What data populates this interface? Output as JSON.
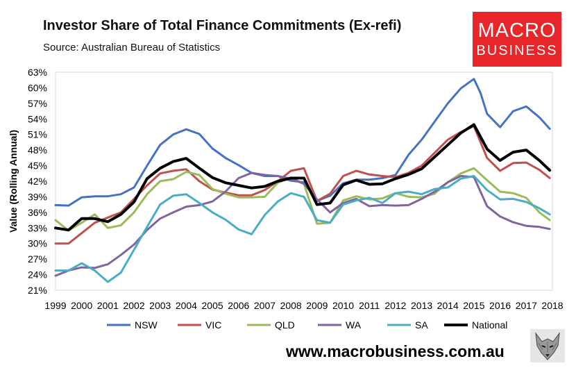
{
  "header": {
    "title": "Investor Share of Total Finance Commitments (Ex-refi)",
    "subtitle": "Source: Australian Bureau of Statistics"
  },
  "logo": {
    "line1": "MACRO",
    "line2": "BUSINESS"
  },
  "footer": {
    "website": "www.macrobusiness.com.au",
    "mascot_icon": "wolf-icon"
  },
  "chart_data": {
    "type": "line",
    "title": "Investor Share of Total Finance Commitments (Ex-refi)",
    "subtitle": "Source: Australian Bureau of Statistics",
    "ylabel": "Value (Rolling Annual)",
    "xlabel": "",
    "ylim": [
      21,
      63
    ],
    "xlim": [
      1999,
      2018
    ],
    "yticks": [
      "21%",
      "24%",
      "27%",
      "30%",
      "33%",
      "36%",
      "39%",
      "42%",
      "45%",
      "48%",
      "51%",
      "54%",
      "57%",
      "60%",
      "63%"
    ],
    "xticks": [
      "1999",
      "2000",
      "2001",
      "2002",
      "2003",
      "2004",
      "2005",
      "2006",
      "2007",
      "2008",
      "2009",
      "2010",
      "2011",
      "2012",
      "2013",
      "2014",
      "2015",
      "2016",
      "2017",
      "2018"
    ],
    "grid": false,
    "legend": "bottom",
    "series": [
      {
        "name": "NSW",
        "color": "#4472c4",
        "width": 3,
        "x": [
          1999,
          1999.5,
          2000,
          2000.5,
          2001,
          2001.5,
          2002,
          2002.5,
          2003,
          2003.5,
          2004,
          2004.5,
          2005,
          2005.5,
          2006,
          2006.5,
          2007,
          2007.5,
          2008,
          2008.5,
          2009,
          2009.5,
          2010,
          2010.5,
          2011,
          2011.5,
          2012,
          2012.5,
          2013,
          2013.5,
          2014,
          2014.5,
          2015,
          2015.25,
          2015.5,
          2016,
          2016.5,
          2017,
          2017.5,
          2017.9
        ],
        "y": [
          37.4,
          37.3,
          38.9,
          39.1,
          39.1,
          39.5,
          40.8,
          45,
          49,
          51,
          52,
          51.1,
          48.3,
          46.5,
          45.1,
          43.6,
          43,
          43,
          42.1,
          41.8,
          38.2,
          39.2,
          41.6,
          42.3,
          42.3,
          42.6,
          43.2,
          47.1,
          50,
          53.5,
          57,
          59.9,
          61.7,
          59,
          55,
          52.4,
          55.5,
          56.4,
          54.3,
          52.1
        ]
      },
      {
        "name": "VIC",
        "color": "#c0504d",
        "width": 3,
        "x": [
          1999,
          1999.5,
          2000,
          2000.5,
          2001,
          2001.5,
          2002,
          2002.5,
          2003,
          2003.5,
          2004,
          2004.5,
          2005,
          2005.5,
          2006,
          2006.5,
          2007,
          2007.5,
          2008,
          2008.5,
          2009,
          2009.5,
          2010,
          2010.5,
          2011,
          2011.5,
          2012,
          2012.5,
          2013,
          2013.5,
          2014,
          2014.5,
          2015,
          2015.5,
          2016,
          2016.5,
          2017,
          2017.5,
          2017.9
        ],
        "y": [
          30,
          30,
          32,
          34,
          35,
          36,
          38.6,
          41.2,
          43.5,
          44,
          44.3,
          42,
          40.4,
          39.8,
          39.3,
          39.3,
          40.3,
          42,
          44,
          44.5,
          38.2,
          39.6,
          43,
          44,
          43.3,
          43,
          42.8,
          43.6,
          45,
          47.5,
          50,
          51.5,
          52.6,
          46.5,
          44,
          45.5,
          45.6,
          44.2,
          42.6
        ]
      },
      {
        "name": "QLD",
        "color": "#9bbb59",
        "width": 3,
        "x": [
          1999,
          1999.5,
          2000,
          2000.5,
          2001,
          2001.5,
          2002,
          2002.5,
          2003,
          2003.5,
          2004,
          2004.5,
          2005,
          2005.5,
          2006,
          2006.5,
          2007,
          2007.5,
          2008,
          2008.5,
          2009,
          2009.5,
          2010,
          2010.5,
          2011,
          2011.5,
          2012,
          2012.5,
          2013,
          2013.5,
          2014,
          2014.5,
          2015,
          2015.5,
          2016,
          2016.5,
          2017,
          2017.5,
          2017.9
        ],
        "y": [
          34.5,
          32.5,
          34,
          35.6,
          33,
          33.5,
          36,
          39.5,
          42,
          42.4,
          43.8,
          43.2,
          40.5,
          39.6,
          38.9,
          38.9,
          39,
          41.7,
          42.7,
          41.5,
          33.8,
          34,
          38.3,
          39.1,
          38.5,
          38.7,
          39.7,
          39,
          38.9,
          39.6,
          41.8,
          43.5,
          44.5,
          42.2,
          40,
          39.7,
          38.8,
          36,
          34.5
        ]
      },
      {
        "name": "WA",
        "color": "#8064a2",
        "width": 3,
        "x": [
          1999,
          1999.5,
          2000,
          2000.5,
          2001,
          2001.5,
          2002,
          2002.5,
          2003,
          2003.5,
          2004,
          2004.5,
          2005,
          2005.5,
          2006,
          2006.5,
          2007,
          2007.5,
          2008,
          2008.5,
          2009,
          2009.5,
          2010,
          2010.5,
          2011,
          2011.5,
          2012,
          2012.5,
          2013,
          2013.5,
          2014,
          2014.5,
          2015,
          2015.5,
          2016,
          2016.5,
          2017,
          2017.5,
          2017.9
        ],
        "y": [
          23.8,
          24.8,
          25.4,
          25.3,
          26,
          27.8,
          29.8,
          32.6,
          34.8,
          36,
          37.1,
          37.4,
          38.1,
          40,
          42.6,
          43.6,
          43.2,
          43,
          42.5,
          41.5,
          38.5,
          36,
          37.8,
          38.6,
          37.2,
          37.4,
          37.3,
          37.4,
          38.6,
          40,
          41.8,
          43,
          42.8,
          37.2,
          35.2,
          34.1,
          33.4,
          33.2,
          32.8
        ]
      },
      {
        "name": "SA",
        "color": "#4bacc6",
        "width": 3,
        "x": [
          1999,
          1999.5,
          2000,
          2000.5,
          2001,
          2001.5,
          2002,
          2002.5,
          2003,
          2003.5,
          2004,
          2004.5,
          2005,
          2005.5,
          2006,
          2006.5,
          2007,
          2007.5,
          2008,
          2008.5,
          2009,
          2009.5,
          2010,
          2010.5,
          2011,
          2011.5,
          2012,
          2012.5,
          2013,
          2013.5,
          2014,
          2014.5,
          2015,
          2015.5,
          2016,
          2016.5,
          2017,
          2017.5,
          2017.9
        ],
        "y": [
          24.8,
          24.8,
          26.2,
          24.8,
          22.6,
          24.4,
          28.8,
          33.2,
          37.5,
          39.2,
          39.5,
          37.8,
          36,
          34.6,
          32.7,
          31.8,
          35.5,
          38.1,
          39.7,
          39,
          34.5,
          34,
          37.5,
          38.3,
          38.8,
          37.8,
          39.7,
          40,
          39.5,
          40.5,
          40.8,
          42.5,
          43,
          40.3,
          38.5,
          38.6,
          38,
          36.8,
          35.6
        ]
      },
      {
        "name": "National",
        "color": "#000000",
        "width": 4,
        "x": [
          1999,
          1999.5,
          2000,
          2000.5,
          2001,
          2001.5,
          2002,
          2002.5,
          2003,
          2003.5,
          2004,
          2004.5,
          2005,
          2005.5,
          2006,
          2006.5,
          2007,
          2007.5,
          2008,
          2008.5,
          2009,
          2009.5,
          2010,
          2010.5,
          2011,
          2011.5,
          2012,
          2012.5,
          2013,
          2013.5,
          2014,
          2014.5,
          2015,
          2015.5,
          2016,
          2016.5,
          2017,
          2017.5,
          2017.9
        ],
        "y": [
          33,
          32.6,
          34.8,
          34.8,
          34.2,
          35.6,
          38,
          42.5,
          44.5,
          45.8,
          46.4,
          44.5,
          42.7,
          41.7,
          41.2,
          40.7,
          41,
          42,
          42.6,
          42.6,
          37.5,
          37.8,
          41.3,
          42.2,
          41.4,
          41.5,
          42.5,
          43.3,
          44.4,
          46.7,
          49,
          51.3,
          52.9,
          48.2,
          46,
          47.6,
          48,
          46,
          44.1
        ]
      }
    ]
  }
}
